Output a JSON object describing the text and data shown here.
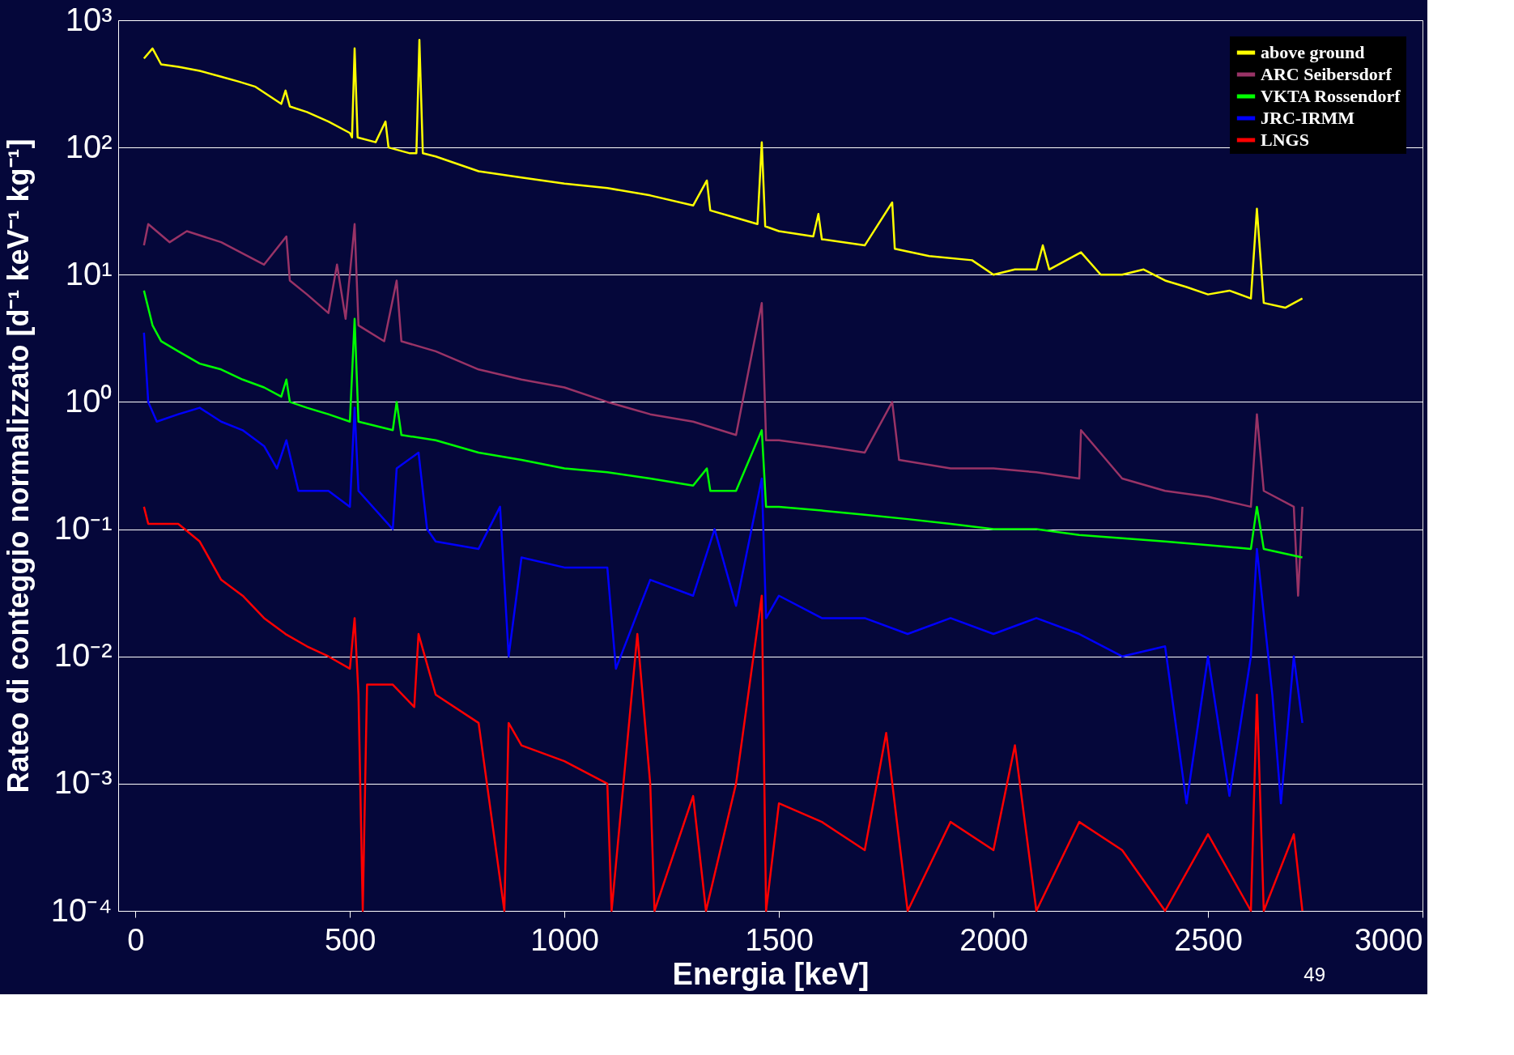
{
  "chart_data": {
    "type": "line",
    "xlabel": "Energia [keV]",
    "ylabel": "Rateo di conteggio normalizzato [d⁻¹ keV⁻¹ kg⁻¹]",
    "log": "y",
    "grid": "y",
    "legend": "top right",
    "line_style": "solid",
    "marker": "none",
    "xlim": [
      -40,
      3000
    ],
    "xticks": [
      0,
      500,
      1000,
      1500,
      2000,
      2500,
      3000
    ],
    "ylim": [
      0.0001,
      1000
    ],
    "yticks": [
      {
        "value": 0.0001,
        "label": "10⁻⁴"
      },
      {
        "value": 0.001,
        "label": "10⁻³"
      },
      {
        "value": 0.01,
        "label": "10⁻²"
      },
      {
        "value": 0.1,
        "label": "10⁻¹"
      },
      {
        "value": 1,
        "label": "10⁰"
      },
      {
        "value": 10,
        "label": "10¹"
      },
      {
        "value": 100,
        "label": "10²"
      },
      {
        "value": 1000,
        "label": "10³"
      }
    ],
    "annotations": [
      "49"
    ],
    "series": [
      {
        "name": "above ground",
        "color": "#ffff00",
        "x": [
          20,
          40,
          60,
          100,
          150,
          200,
          240,
          280,
          340,
          350,
          360,
          400,
          450,
          500,
          505,
          511,
          518,
          560,
          583,
          590,
          640,
          655,
          662,
          670,
          700,
          800,
          900,
          1000,
          1100,
          1200,
          1300,
          1332,
          1340,
          1400,
          1450,
          1460,
          1468,
          1500,
          1580,
          1592,
          1600,
          1700,
          1764,
          1770,
          1850,
          1950,
          2000,
          2050,
          2100,
          2115,
          2130,
          2204,
          2250,
          2300,
          2350,
          2400,
          2450,
          2500,
          2550,
          2600,
          2614,
          2630,
          2680,
          2720
        ],
        "values": [
          500,
          600,
          450,
          430,
          400,
          360,
          330,
          300,
          220,
          280,
          210,
          190,
          160,
          130,
          120,
          600,
          120,
          110,
          160,
          100,
          90,
          90,
          700,
          90,
          85,
          65,
          58,
          52,
          48,
          42,
          35,
          55,
          32,
          28,
          25,
          110,
          24,
          22,
          20,
          30,
          19,
          17,
          37,
          16,
          14,
          13,
          10,
          11,
          11,
          17,
          11,
          15,
          10,
          10,
          11,
          9,
          8,
          7,
          7.5,
          6.5,
          33,
          6,
          5.5,
          6.5
        ]
      },
      {
        "name": "ARC Seibersdorf",
        "color": "#993366",
        "x": [
          20,
          30,
          80,
          120,
          200,
          300,
          352,
          360,
          400,
          450,
          470,
          490,
          511,
          520,
          580,
          609,
          620,
          700,
          800,
          900,
          1000,
          1100,
          1200,
          1300,
          1400,
          1460,
          1470,
          1500,
          1600,
          1700,
          1764,
          1780,
          1900,
          2000,
          2100,
          2200,
          2204,
          2300,
          2400,
          2500,
          2600,
          2614,
          2630,
          2700,
          2710,
          2720
        ],
        "values": [
          17,
          25,
          18,
          22,
          18,
          12,
          20,
          9,
          7,
          5,
          12,
          4.5,
          25,
          4,
          3,
          9,
          3,
          2.5,
          1.8,
          1.5,
          1.3,
          1,
          0.8,
          0.7,
          0.55,
          6,
          0.5,
          0.5,
          0.45,
          0.4,
          1,
          0.35,
          0.3,
          0.3,
          0.28,
          0.25,
          0.6,
          0.25,
          0.2,
          0.18,
          0.15,
          0.8,
          0.2,
          0.15,
          0.03,
          0.15
        ]
      },
      {
        "name": "VKTA Rossendorf",
        "color": "#00ff00",
        "x": [
          20,
          40,
          60,
          100,
          150,
          200,
          250,
          300,
          340,
          352,
          360,
          400,
          450,
          500,
          511,
          520,
          600,
          609,
          620,
          700,
          800,
          900,
          1000,
          1100,
          1200,
          1300,
          1332,
          1340,
          1400,
          1460,
          1470,
          1500,
          1600,
          1700,
          1800,
          1900,
          2000,
          2100,
          2200,
          2300,
          2400,
          2500,
          2600,
          2614,
          2630,
          2720
        ],
        "values": [
          7.5,
          4,
          3,
          2.5,
          2,
          1.8,
          1.5,
          1.3,
          1.1,
          1.5,
          1,
          0.9,
          0.8,
          0.7,
          4.5,
          0.7,
          0.6,
          1,
          0.55,
          0.5,
          0.4,
          0.35,
          0.3,
          0.28,
          0.25,
          0.22,
          0.3,
          0.2,
          0.2,
          0.6,
          0.15,
          0.15,
          0.14,
          0.13,
          0.12,
          0.11,
          0.1,
          0.1,
          0.09,
          0.085,
          0.08,
          0.075,
          0.07,
          0.15,
          0.07,
          0.06
        ]
      },
      {
        "name": "JRC-IRMM",
        "color": "#0000ff",
        "x": [
          20,
          30,
          50,
          100,
          150,
          200,
          250,
          300,
          330,
          352,
          380,
          450,
          500,
          511,
          520,
          600,
          609,
          660,
          680,
          700,
          800,
          850,
          870,
          900,
          1000,
          1100,
          1120,
          1200,
          1300,
          1350,
          1400,
          1460,
          1470,
          1500,
          1600,
          1700,
          1800,
          1900,
          2000,
          2100,
          2200,
          2300,
          2400,
          2450,
          2500,
          2550,
          2600,
          2614,
          2650,
          2670,
          2700,
          2720
        ],
        "values": [
          3.5,
          1,
          0.7,
          0.8,
          0.9,
          0.7,
          0.6,
          0.45,
          0.3,
          0.5,
          0.2,
          0.2,
          0.15,
          0.9,
          0.2,
          0.1,
          0.3,
          0.4,
          0.1,
          0.08,
          0.07,
          0.15,
          0.01,
          0.06,
          0.05,
          0.05,
          0.008,
          0.04,
          0.03,
          0.1,
          0.025,
          0.25,
          0.02,
          0.03,
          0.02,
          0.02,
          0.015,
          0.02,
          0.015,
          0.02,
          0.015,
          0.01,
          0.012,
          0.0007,
          0.01,
          0.0008,
          0.01,
          0.07,
          0.005,
          0.0007,
          0.01,
          0.003
        ]
      },
      {
        "name": "LNGS",
        "color": "#ff0000",
        "x": [
          20,
          30,
          100,
          150,
          200,
          250,
          300,
          350,
          400,
          450,
          500,
          511,
          520,
          530,
          540,
          600,
          650,
          660,
          700,
          800,
          860,
          870,
          900,
          1000,
          1100,
          1110,
          1170,
          1200,
          1210,
          1300,
          1330,
          1400,
          1460,
          1470,
          1500,
          1600,
          1700,
          1750,
          1800,
          1900,
          2000,
          2050,
          2100,
          2200,
          2300,
          2400,
          2500,
          2600,
          2614,
          2630,
          2700,
          2720
        ],
        "values": [
          0.15,
          0.11,
          0.11,
          0.08,
          0.04,
          0.03,
          0.02,
          0.015,
          0.012,
          0.01,
          0.008,
          0.02,
          0.005,
          0.0001,
          0.006,
          0.006,
          0.004,
          0.015,
          0.005,
          0.003,
          0.0001,
          0.003,
          0.002,
          0.0015,
          0.001,
          0.0001,
          0.015,
          0.001,
          0.0001,
          0.0008,
          0.0001,
          0.001,
          0.03,
          0.0001,
          0.0007,
          0.0005,
          0.0003,
          0.0025,
          0.0001,
          0.0005,
          0.0003,
          0.002,
          0.0001,
          0.0005,
          0.0003,
          0.0001,
          0.0004,
          0.0001,
          0.005,
          0.0001,
          0.0004,
          0.0001
        ]
      }
    ]
  }
}
